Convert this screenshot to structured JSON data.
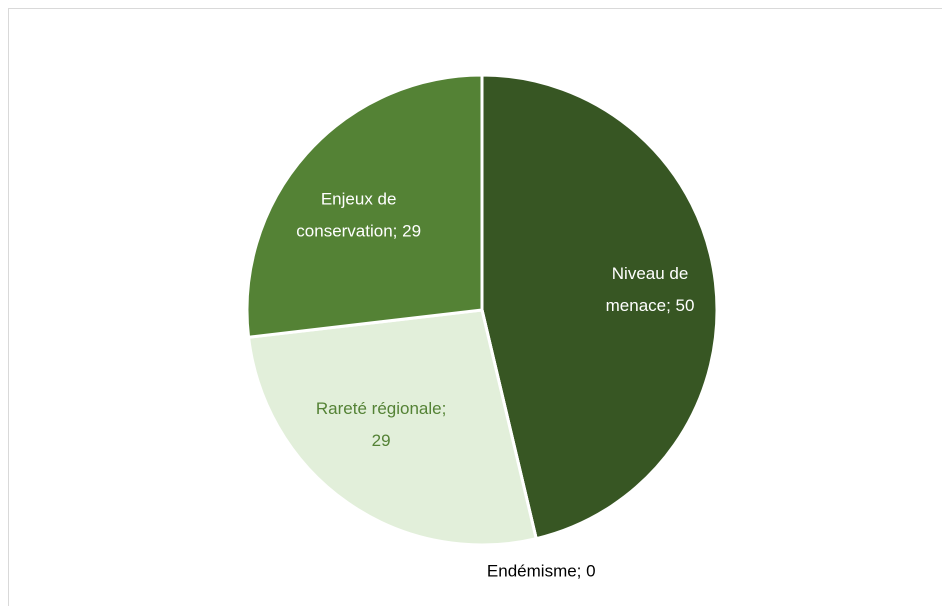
{
  "chart_data": {
    "type": "pie",
    "categories": [
      "Niveau de menace",
      "Endémisme",
      "Rareté régionale",
      "Enjeux de conservation"
    ],
    "values": [
      50,
      0,
      29,
      29
    ],
    "value_labels": [
      [
        "Niveau de",
        "menace; 50"
      ],
      [
        "Endémisme; 0"
      ],
      [
        "Rareté régionale;",
        "29"
      ],
      [
        "Enjeux de",
        "conservation; 29"
      ]
    ],
    "colors": [
      "#375623",
      "#a9d08e",
      "#e2efda",
      "#548235"
    ],
    "label_colors": [
      "#ffffff",
      "#000000",
      "#548235",
      "#ffffff"
    ]
  }
}
